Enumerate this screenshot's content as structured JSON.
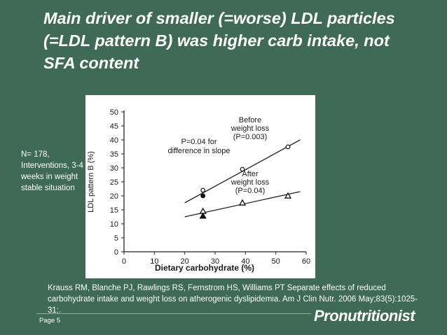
{
  "slide": {
    "title": "Main driver of smaller (=worse) LDL particles (=LDL pattern B) was higher carb intake, not SFA content",
    "side_note": "N= 178, Interventions, 3-4 weeks in weight stable situation",
    "reference": "Krauss RM, Blanche PJ, Rawlings RS, Fernstrom HS, Williams PT Separate effects of reduced carbohydrate intake and weight loss on atherogenic dyslipidemia. Am J Clin Nutr. 2006 May;83(5):1025-31;.",
    "page_label": "Page 5",
    "logo_text": "Pronutritionist",
    "colors": {
      "background": "#3f6a55",
      "text": "#ffffff"
    }
  },
  "chart_data": {
    "type": "scatter",
    "xlabel": "Dietary carbohydrate (%)",
    "ylabel": "LDL pattern B (%)",
    "xlim": [
      0,
      60
    ],
    "ylim": [
      0,
      50
    ],
    "x_ticks": [
      "0",
      "10",
      "20",
      "30",
      "40",
      "50",
      "60"
    ],
    "y_ticks": [
      "0",
      "5",
      "10",
      "15",
      "20",
      "25",
      "30",
      "35",
      "40",
      "45",
      "50"
    ],
    "annotation": "P=0.04 for difference in slope",
    "series": [
      {
        "name": "Before weight loss",
        "label_lines": [
          "Before",
          "weight loss",
          "(P=0.003)"
        ],
        "marker": "circle",
        "points": [
          {
            "x": 26,
            "y": 22,
            "filled": false
          },
          {
            "x": 26,
            "y": 20,
            "filled": true
          },
          {
            "x": 39,
            "y": 29.5,
            "filled": false
          },
          {
            "x": 54,
            "y": 37.5,
            "filled": false
          }
        ],
        "fit": [
          [
            20,
            17.5
          ],
          [
            58,
            40
          ]
        ]
      },
      {
        "name": "After weight loss",
        "label_lines": [
          "After",
          "weight loss",
          "(P=0.04)"
        ],
        "marker": "triangle",
        "points": [
          {
            "x": 26,
            "y": 14.5,
            "filled": false
          },
          {
            "x": 26,
            "y": 12.8,
            "filled": true
          },
          {
            "x": 39,
            "y": 17.5,
            "filled": false
          },
          {
            "x": 54,
            "y": 20,
            "filled": false
          }
        ],
        "fit": [
          [
            20,
            12.5
          ],
          [
            58,
            21.5
          ]
        ]
      }
    ]
  }
}
